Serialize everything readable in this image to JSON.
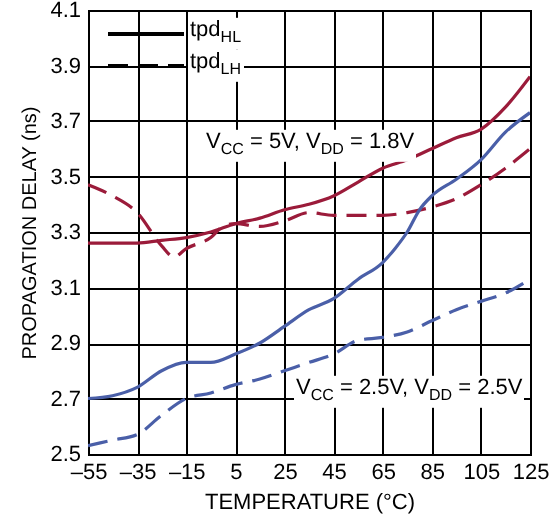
{
  "chart_data": {
    "type": "line",
    "xlabel": "TEMPERATURE (°C)",
    "ylabel": "PROPAGATION DELAY (ns)",
    "x": [
      -55,
      -45,
      -35,
      -25,
      -15,
      -5,
      5,
      15,
      25,
      35,
      45,
      55,
      65,
      75,
      85,
      95,
      105,
      115,
      125
    ],
    "series": [
      {
        "color": "#9b1b3a",
        "line_style": "solid",
        "values": [
          3.26,
          3.26,
          3.26,
          3.27,
          3.28,
          3.3,
          3.33,
          3.35,
          3.38,
          3.4,
          3.43,
          3.48,
          3.53,
          3.56,
          3.6,
          3.64,
          3.67,
          3.75,
          3.86
        ]
      },
      {
        "color": "#9b1b3a",
        "line_style": "dashed",
        "x": [
          -55,
          -45,
          -35,
          -25,
          -20,
          -15,
          -5,
          0,
          5,
          15,
          25,
          35,
          45,
          55,
          65,
          75,
          85,
          95,
          105,
          115,
          125
        ],
        "values": [
          3.47,
          3.43,
          3.37,
          3.25,
          3.21,
          3.24,
          3.28,
          3.32,
          3.33,
          3.32,
          3.34,
          3.37,
          3.36,
          3.36,
          3.36,
          3.37,
          3.39,
          3.42,
          3.47,
          3.53,
          3.6
        ]
      },
      {
        "color": "#4a5fa8",
        "line_style": "solid",
        "x": [
          -55,
          -45,
          -35,
          -25,
          -15,
          -5,
          5,
          15,
          25,
          35,
          45,
          55,
          65,
          70,
          75,
          80,
          85,
          95,
          105,
          115,
          125
        ],
        "values": [
          2.7,
          2.71,
          2.74,
          2.8,
          2.83,
          2.83,
          2.86,
          2.9,
          2.96,
          3.02,
          3.06,
          3.13,
          3.19,
          3.24,
          3.3,
          3.38,
          3.43,
          3.49,
          3.56,
          3.66,
          3.73
        ]
      },
      {
        "color": "#4a5fa8",
        "line_style": "dashed",
        "values": [
          2.53,
          2.55,
          2.57,
          2.64,
          2.7,
          2.72,
          2.75,
          2.77,
          2.8,
          2.83,
          2.86,
          2.91,
          2.92,
          2.94,
          2.98,
          3.02,
          3.05,
          3.08,
          3.13
        ]
      }
    ],
    "xlim": [
      -55,
      125
    ],
    "xticks": [
      {
        "value": -55,
        "label": "–55"
      },
      {
        "value": -35,
        "label": "–35"
      },
      {
        "value": -15,
        "label": "–15"
      },
      5,
      25,
      45,
      65,
      85,
      105,
      125
    ],
    "ylim": [
      2.5,
      4.1
    ],
    "yticks": [
      2.5,
      2.7,
      2.9,
      3.1,
      3.3,
      3.5,
      3.7,
      3.9,
      4.1
    ],
    "grid": true,
    "annotations": [
      "tpd$_{HL}$",
      "tpd$_{LH}$",
      "V$_{CC}$ = 5V, V$_{DD}$ = 1.8V",
      "V$_{CC}$ = 2.5V, V$_{DD}$ = 2.5V"
    ]
  }
}
